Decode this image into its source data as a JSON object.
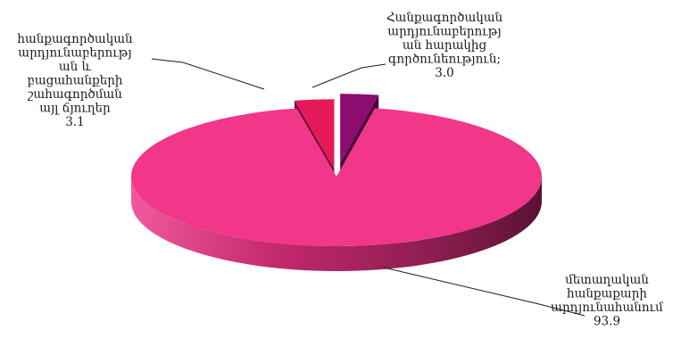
{
  "chart_data": {
    "type": "pie",
    "title": "",
    "slices": [
      {
        "name": "մետաղական հանքաքարի արդյունահանում",
        "value": 93.9,
        "value_label": "93.9",
        "color": "#f2368a",
        "side_color": "#7a1b48",
        "label_lines": [
          "մետաղական",
          "հանքաքարի",
          "արդյունահանում",
          "93.9"
        ]
      },
      {
        "name": "հանքագործական արդյունաբերության և բացահանքերի շահագործման այլ ճյուղեր",
        "value": 3.1,
        "value_label": "3.1",
        "color": "#e5185a",
        "side_color": "#6e0b2a",
        "label_lines": [
          "հանքագործական",
          "արդյունաբերությ",
          "ան և",
          "բացահանքերի",
          "շահագործման",
          "այլ ճյուղեր",
          "3.1"
        ]
      },
      {
        "name": "Հանքագործական արդյունաբերության հարակից գործունեություն",
        "value": 3.0,
        "value_label": "3.0",
        "color": "#8c0d6f",
        "side_color": "#4a0439",
        "label_lines": [
          "Հանքագործական",
          "արդյունաբերությ",
          "ան հարակից",
          "գործունեություն;",
          "3.0"
        ]
      }
    ],
    "legend": "none",
    "style": "3d-exploded"
  }
}
